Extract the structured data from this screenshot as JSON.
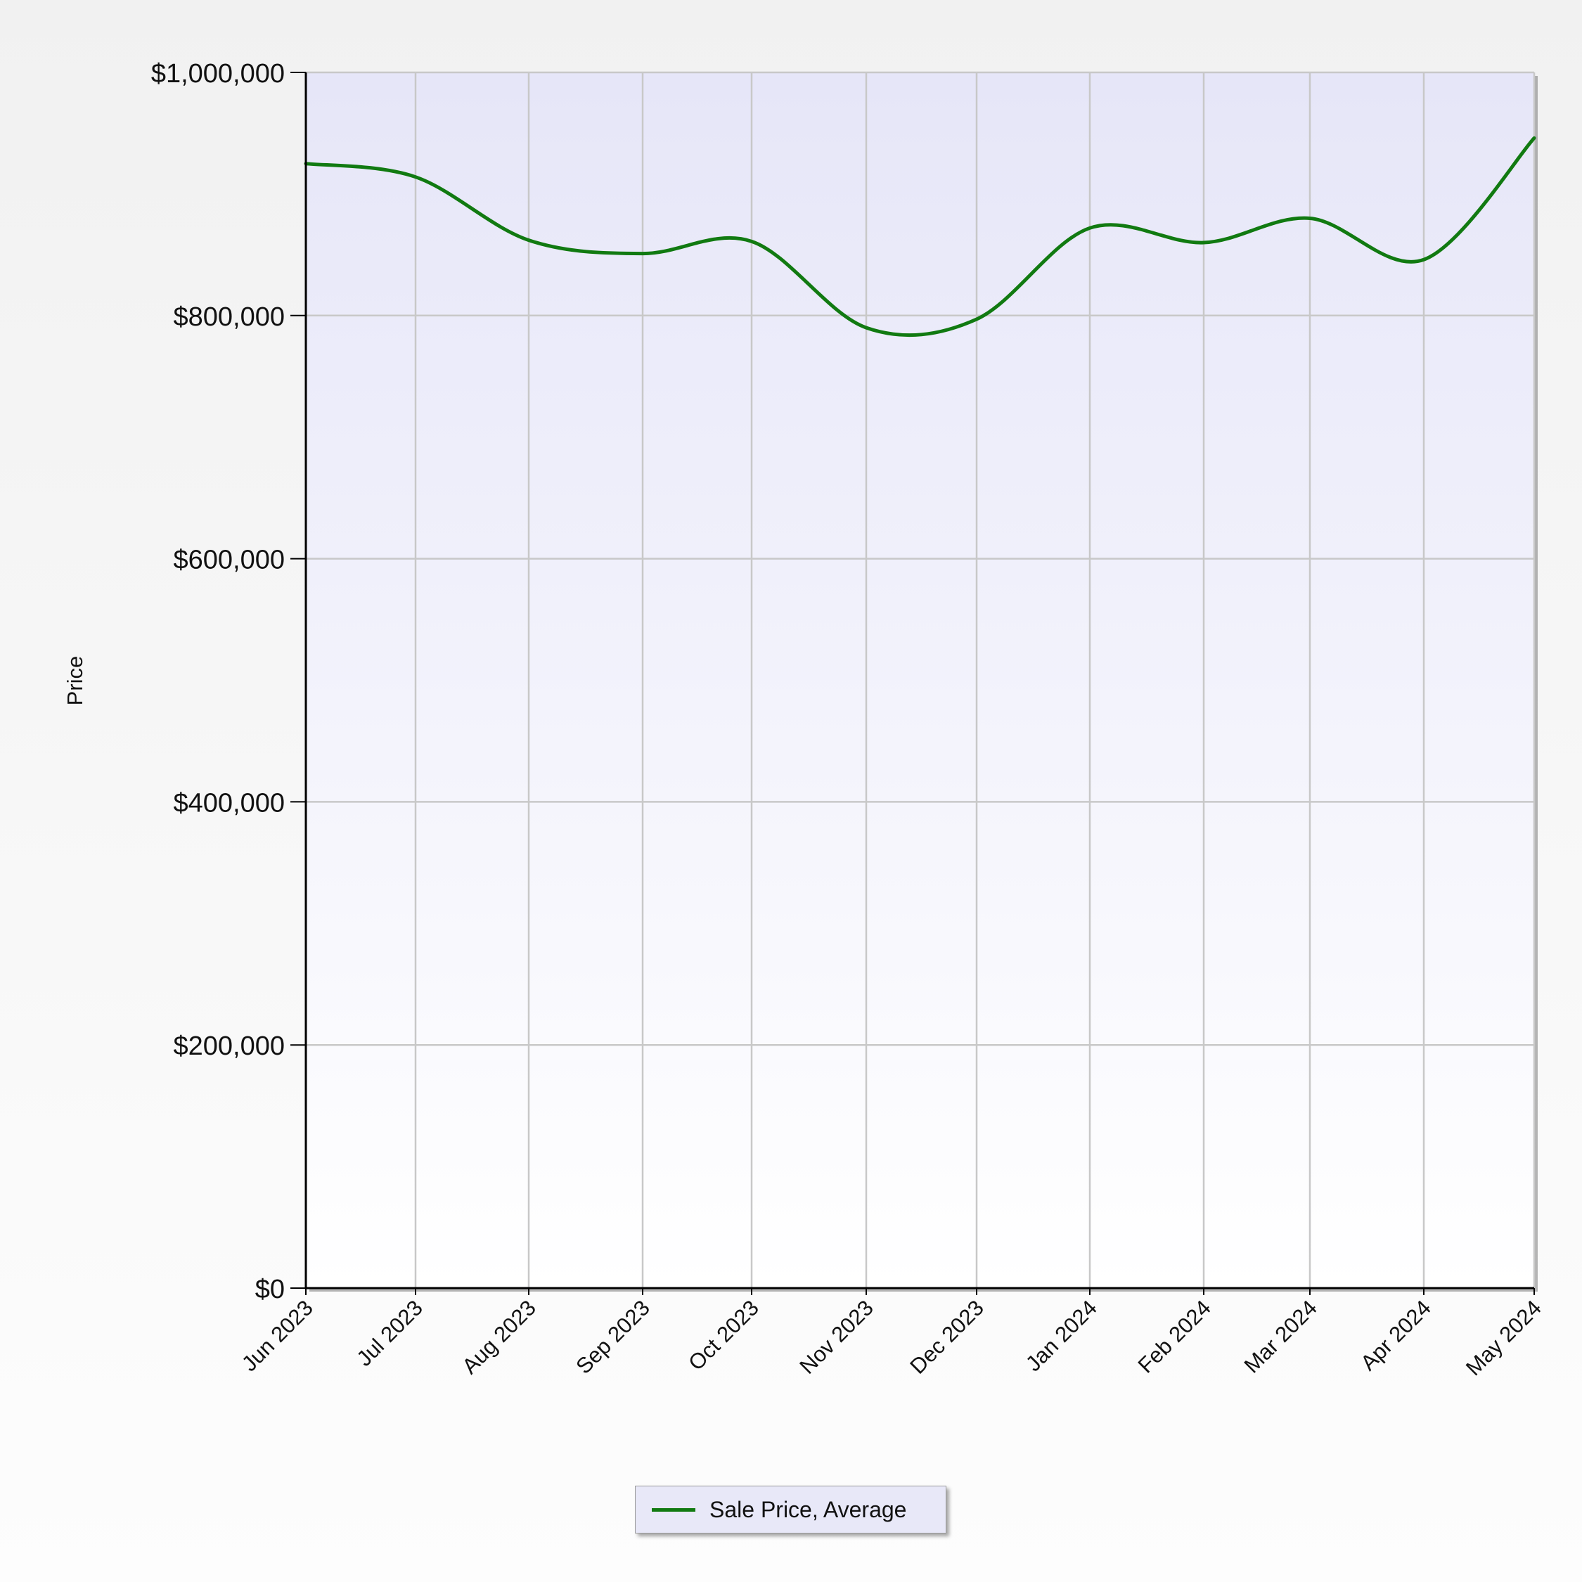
{
  "chart_data": {
    "type": "line",
    "title": "",
    "xlabel": "",
    "ylabel": "Price",
    "ylim": [
      0,
      1000000
    ],
    "y_ticks": [
      0,
      200000,
      400000,
      600000,
      800000,
      1000000
    ],
    "y_tick_labels": [
      "$0",
      "$200,000",
      "$400,000",
      "$600,000",
      "$800,000",
      "$1,000,000"
    ],
    "categories": [
      "Jun 2023",
      "Jul 2023",
      "Aug 2023",
      "Sep 2023",
      "Oct 2023",
      "Nov 2023",
      "Dec 2023",
      "Jan 2024",
      "Feb 2024",
      "Mar 2024",
      "Apr 2024",
      "May 2024"
    ],
    "grid": true,
    "legend_position": "bottom",
    "series": [
      {
        "name": "Sale Price, Average",
        "color": "#117a11",
        "values": [
          925000,
          914000,
          862000,
          851000,
          861000,
          790000,
          797000,
          872000,
          860000,
          880000,
          846000,
          946000
        ]
      }
    ]
  },
  "colors": {
    "plot_top": "#e6e6f8",
    "plot_bottom": "#ffffff",
    "grid": "#c8c8c8",
    "axis": "#000000"
  }
}
